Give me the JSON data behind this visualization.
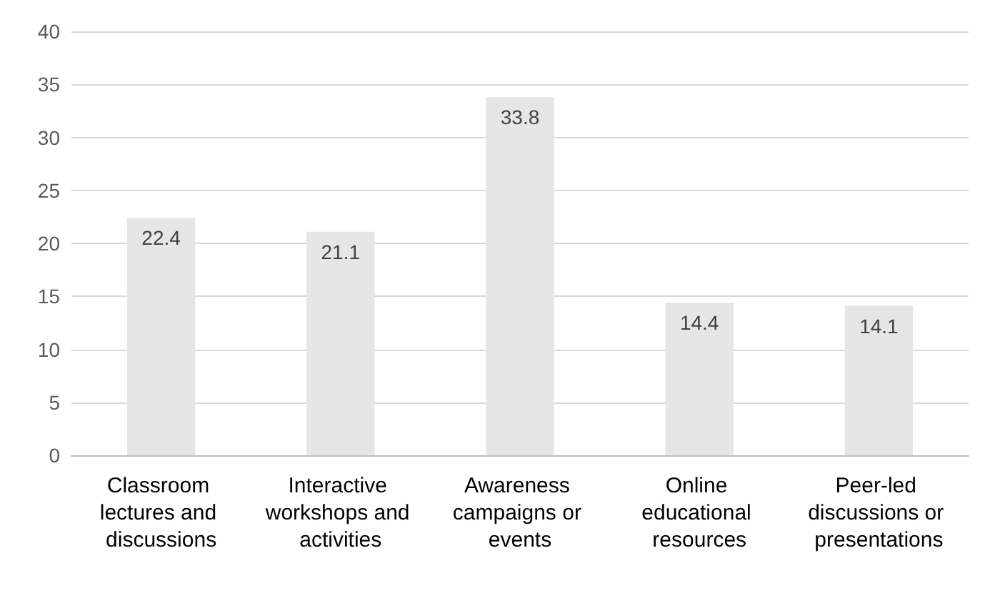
{
  "chart_data": {
    "type": "bar",
    "categories": [
      "Classroom lectures and discussions",
      "Interactive workshops and activities",
      "Awareness campaigns or events",
      "Online educational resources",
      "Peer-led discussions or presentations"
    ],
    "values": [
      22.4,
      21.1,
      33.8,
      14.4,
      14.1
    ],
    "color": "#e6e6e6",
    "ylim": [
      0,
      40
    ],
    "yticks": [
      0,
      5,
      10,
      15,
      20,
      25,
      30,
      35,
      40
    ],
    "grid": "y",
    "data_labels": true
  }
}
